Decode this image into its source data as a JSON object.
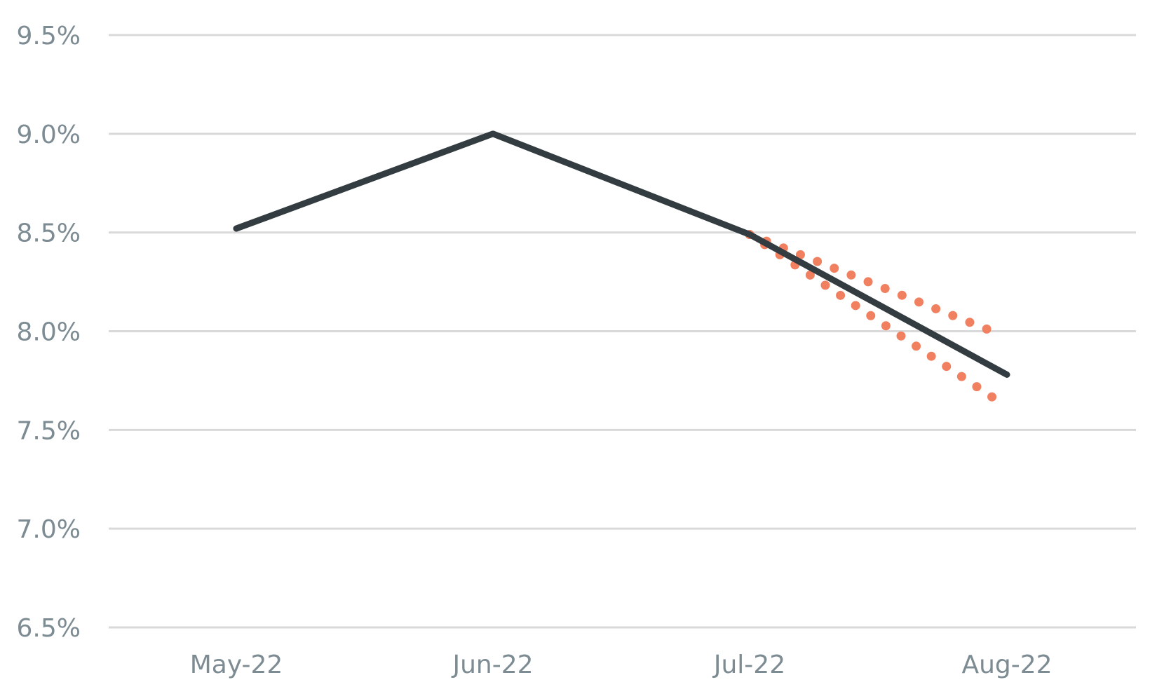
{
  "chart_data": {
    "type": "line",
    "categories": [
      "May-22",
      "Jun-22",
      "Jul-22",
      "Aug-22"
    ],
    "y_ticks": [
      "6.5%",
      "7.0%",
      "7.5%",
      "8.0%",
      "8.5%",
      "9.0%",
      "9.5%"
    ],
    "ylim": [
      6.5,
      9.5
    ],
    "grid": true,
    "legend": "none",
    "series": [
      {
        "values": [
          8.52,
          9.0,
          8.49,
          7.78
        ],
        "color": "#333c40",
        "style": "solid"
      }
    ],
    "bands": [
      {
        "from": "Jul-22",
        "to": "Aug-22",
        "upper": [
          8.49,
          7.99
        ],
        "lower": [
          8.49,
          7.65
        ],
        "color": "#f08060",
        "style": "dotted"
      }
    ]
  }
}
